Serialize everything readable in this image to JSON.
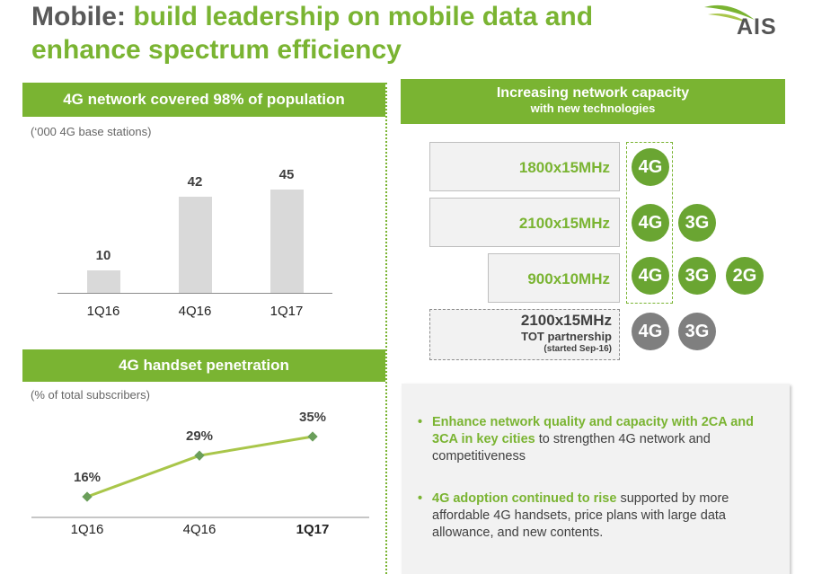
{
  "title": {
    "dark": "Mobile:",
    "rest": " build leadership on mobile data and enhance spectrum efficiency"
  },
  "logo": {
    "text": "AIS",
    "colors": {
      "green": "#7ab432",
      "grey": "#555555"
    }
  },
  "network_panel": {
    "header": "4G network covered 98% of population",
    "subtitle": "(‘000 4G base stations)",
    "chart_data": {
      "type": "bar",
      "title": "4G network covered 98% of population",
      "ylabel": "(‘000 4G base stations)",
      "categories": [
        "1Q16",
        "4Q16",
        "1Q17"
      ],
      "values": [
        10,
        42,
        45
      ],
      "value_labels": [
        "10",
        "42",
        "45"
      ],
      "ylim": [
        0,
        60
      ],
      "grid": false
    }
  },
  "handset_panel": {
    "header": "4G  handset penetration",
    "subtitle": "(% of total subscribers)",
    "chart_data": {
      "type": "line",
      "title": "4G  handset penetration",
      "ylabel": "(% of total subscribers)",
      "categories": [
        "1Q16",
        "4Q16",
        "1Q17"
      ],
      "values": [
        16,
        29,
        35
      ],
      "value_labels": [
        "16%",
        "29%",
        "35%"
      ],
      "ylim": [
        0,
        50
      ],
      "grid": false,
      "line_color": "#a9c64a"
    }
  },
  "capacity": {
    "header_main": "Increasing network capacity",
    "header_sub": "with new technologies",
    "rows": [
      {
        "label": "1800x15MHz",
        "techs": [
          "4G"
        ]
      },
      {
        "label": "2100x15MHz",
        "techs": [
          "4G",
          "3G"
        ]
      },
      {
        "label": "900x10MHz",
        "techs": [
          "4G",
          "3G",
          "2G"
        ]
      }
    ],
    "tot": {
      "label": "2100x15MHz",
      "sub1": "TOT partnership",
      "sub2": "(started Sep-16)",
      "techs": [
        "4G",
        "3G"
      ]
    }
  },
  "notes": {
    "b1": {
      "hl": "Enhance network quality and capacity with 2CA and 3CA in key cities",
      "rest": " to strengthen 4G network and competitiveness"
    },
    "b2": {
      "hl": "4G adoption continued to rise",
      "rest": " supported by more affordable 4G handsets, price plans with large data allowance, and new contents."
    }
  }
}
